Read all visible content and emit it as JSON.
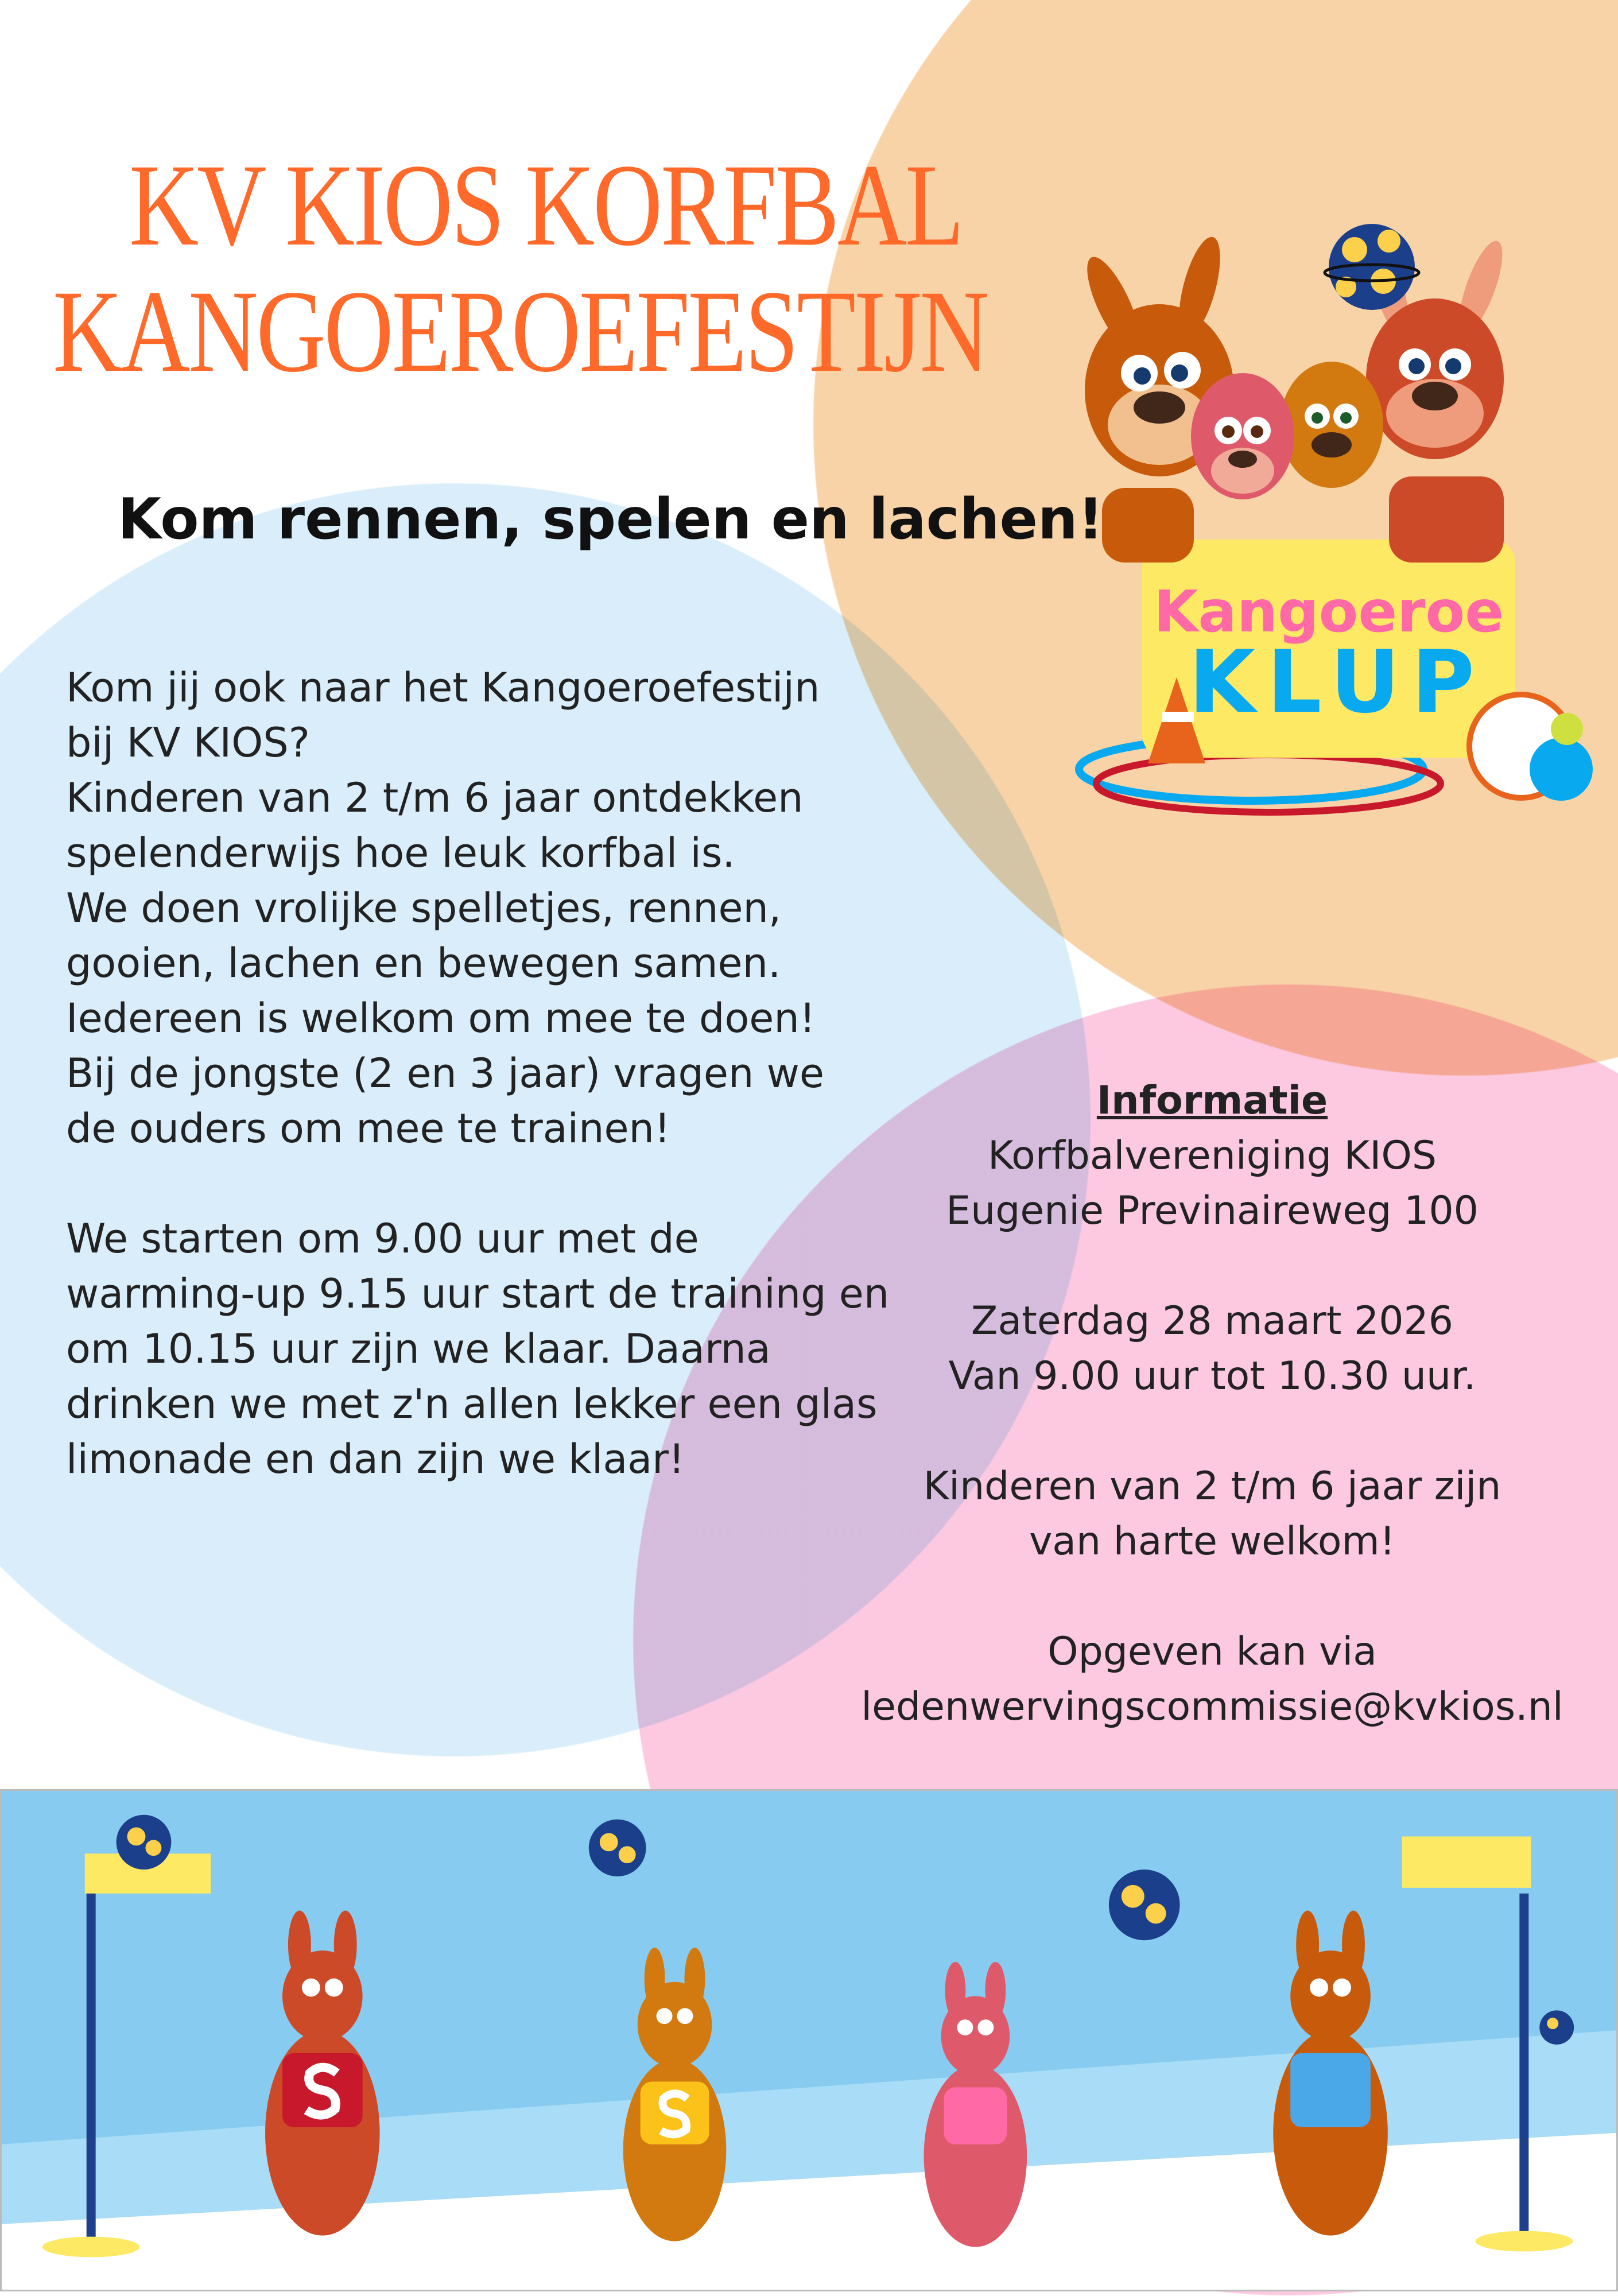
{
  "title": {
    "line1": "KV KIOS KORFBAL",
    "line2": "KANGOEROEFESTIJN"
  },
  "subtitle": "Kom rennen, spelen en lachen!",
  "body": {
    "paragraph1": [
      "Kom jij ook naar het Kangoeroefestijn",
      "bij KV KIOS?",
      "Kinderen van 2 t/m 6 jaar ontdekken",
      "spelenderwijs hoe leuk korfbal is.",
      "We doen vrolijke spelletjes, rennen,",
      "gooien, lachen en bewegen samen.",
      "Iedereen is welkom om mee te doen!",
      "Bij de jongste (2 en 3 jaar) vragen we",
      "de ouders om mee te trainen!"
    ],
    "paragraph2": [
      "We starten om 9.00 uur met de",
      "warming-up 9.15 uur start de training en",
      "om 10.15 uur zijn we klaar. Daarna",
      "drinken we met z'n allen lekker een glas",
      "limonade en dan zijn we klaar!"
    ]
  },
  "info": {
    "heading": "Informatie",
    "club": "Korfbalvereniging KIOS",
    "address": "Eugenie Previnaireweg 100",
    "date": "Zaterdag 28 maart 2026",
    "time": "Van 9.00 uur tot 10.30 uur.",
    "audience1": "Kinderen van 2 t/m 6 jaar zijn",
    "audience2": "van harte welkom!",
    "signup1": "Opgeven kan via",
    "signup2": "ledenwervingscommissie@kvkios.nl"
  },
  "logo": {
    "word1": "Kangoeroe",
    "word2": "KLUP"
  },
  "colors": {
    "title": "#ff6a2a",
    "peach": "#f8d3a8",
    "blue": "#d9eefa",
    "pink": "#fcc9e1",
    "sky": "#87ccf0"
  }
}
